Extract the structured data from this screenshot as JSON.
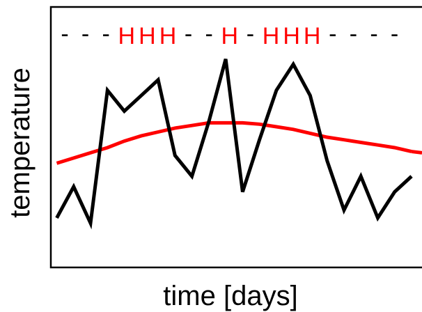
{
  "chart_data": {
    "type": "line",
    "title": "",
    "xlabel": "time [days]",
    "ylabel": "temperature",
    "x": [
      1,
      2,
      3,
      4,
      5,
      6,
      7,
      8,
      9,
      10,
      11,
      12,
      13,
      14,
      15,
      16,
      17,
      18,
      19,
      20,
      21,
      22
    ],
    "xlim": [
      0,
      22.3
    ],
    "ylim": [
      0,
      10
    ],
    "grid": false,
    "legend": "none",
    "series": [
      {
        "color": "#000000",
        "values": [
          1.9,
          3.1,
          1.7,
          6.8,
          6.0,
          6.6,
          7.2,
          4.3,
          3.5,
          5.6,
          8.0,
          2.9,
          4.9,
          6.8,
          7.8,
          6.6,
          4.1,
          2.2,
          3.5,
          1.9,
          2.9,
          3.5
        ]
      },
      {
        "color": "#ff0000",
        "values": [
          4.0,
          4.2,
          4.4,
          4.6,
          4.85,
          5.05,
          5.2,
          5.35,
          5.45,
          5.55,
          5.55,
          5.55,
          5.5,
          5.4,
          5.3,
          5.15,
          5.0,
          4.9,
          4.8,
          4.7,
          4.6,
          4.45
        ]
      }
    ],
    "annotations": {
      "color": "#ff0000",
      "y": 9.15,
      "labels": [
        "-",
        "-",
        "-",
        "H",
        "H",
        "H",
        "-",
        "-",
        "H",
        "-",
        "H",
        "H",
        "H",
        "-",
        "-",
        "-",
        "-"
      ],
      "x": [
        1,
        2,
        3,
        4,
        5,
        6,
        7,
        8,
        9,
        10,
        11,
        12,
        13,
        14,
        15,
        16,
        17
      ]
    }
  }
}
